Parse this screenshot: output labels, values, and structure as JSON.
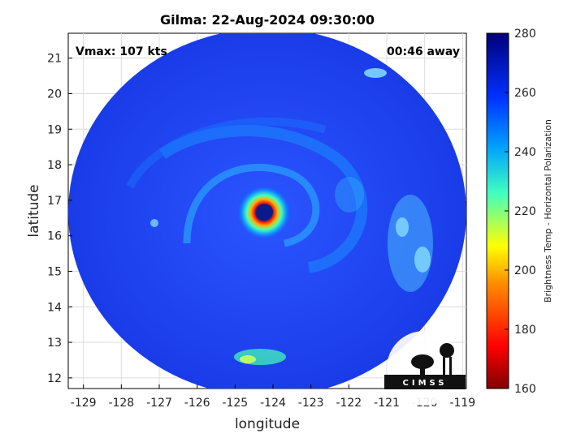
{
  "title": "Gilma: 22-Aug-2024 09:30:00",
  "annotations": {
    "vmax": "Vmax: 107 kts",
    "away": "00:46 away"
  },
  "x_axis": {
    "label": "longitude",
    "range": [
      -129.4,
      -118.9
    ],
    "ticks": [
      -129,
      -128,
      -127,
      -126,
      -125,
      -124,
      -123,
      -122,
      -121,
      -120,
      -119
    ]
  },
  "y_axis": {
    "label": "latitude",
    "range": [
      11.7,
      21.7
    ],
    "ticks": [
      12,
      13,
      14,
      15,
      16,
      17,
      18,
      19,
      20,
      21
    ]
  },
  "colorbar": {
    "label": "Brightness Temp - Horizontal Polarization",
    "range": [
      160,
      280
    ],
    "ticks": [
      160,
      180,
      200,
      220,
      240,
      260,
      280
    ]
  },
  "storm_center": {
    "lon": -124.2,
    "lat": 16.6
  },
  "logo": {
    "text": "CIMSS"
  },
  "colors": {
    "background_blue": "#1f45f0",
    "eye": "#0a1a8a"
  }
}
